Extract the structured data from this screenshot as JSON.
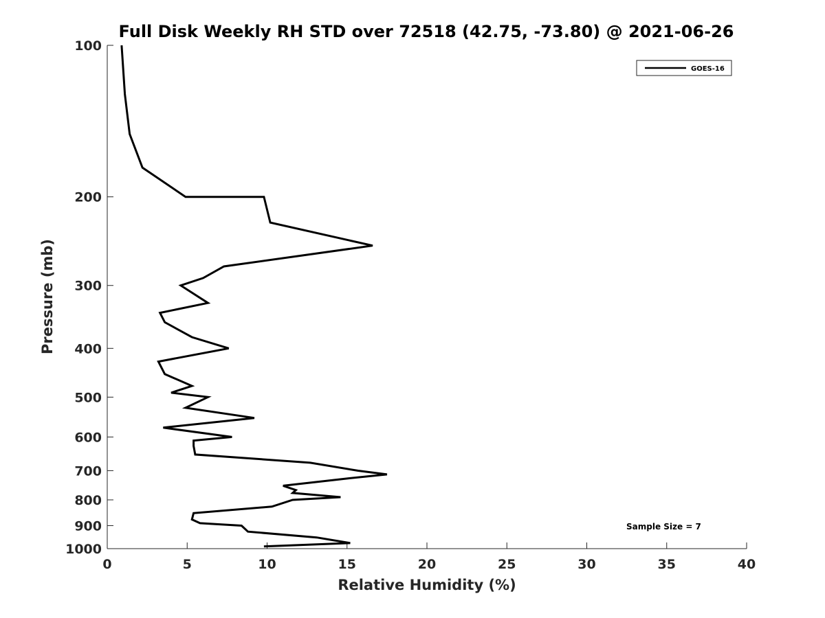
{
  "chart_data": {
    "type": "line",
    "title": "Full Disk Weekly RH STD over 72518 (42.75, -73.80) @ 2021-06-26",
    "xlabel": "Relative Humidity (%)",
    "ylabel": "Pressure (mb)",
    "xlim": [
      0,
      40
    ],
    "ylim": [
      100,
      1000
    ],
    "y_scale": "log-reversed",
    "xticks": [
      0,
      5,
      10,
      15,
      20,
      25,
      30,
      35,
      40
    ],
    "yticks": [
      100,
      200,
      300,
      400,
      500,
      600,
      700,
      800,
      900,
      1000
    ],
    "legend": {
      "placement": "top-right",
      "entries": [
        "GOES-16"
      ]
    },
    "annotation": "Sample Size = 7",
    "series": [
      {
        "name": "GOES-16",
        "color": "#000000",
        "points": [
          [
            0.9,
            100
          ],
          [
            1.1,
            125
          ],
          [
            1.4,
            150
          ],
          [
            2.2,
            175
          ],
          [
            4.9,
            200
          ],
          [
            9.8,
            200
          ],
          [
            10.2,
            225
          ],
          [
            16.6,
            250
          ],
          [
            7.3,
            275
          ],
          [
            6.0,
            290
          ],
          [
            4.6,
            300
          ],
          [
            6.3,
            325
          ],
          [
            3.3,
            340
          ],
          [
            3.6,
            355
          ],
          [
            5.3,
            380
          ],
          [
            7.6,
            400
          ],
          [
            3.2,
            425
          ],
          [
            3.6,
            450
          ],
          [
            5.3,
            475
          ],
          [
            4.0,
            490
          ],
          [
            6.3,
            500
          ],
          [
            4.9,
            525
          ],
          [
            9.2,
            550
          ],
          [
            3.5,
            575
          ],
          [
            7.8,
            600
          ],
          [
            5.4,
            610
          ],
          [
            5.4,
            625
          ],
          [
            5.5,
            650
          ],
          [
            12.7,
            675
          ],
          [
            15.7,
            700
          ],
          [
            17.5,
            712
          ],
          [
            15.1,
            725
          ],
          [
            11.0,
            750
          ],
          [
            11.8,
            765
          ],
          [
            11.6,
            775
          ],
          [
            14.6,
            790
          ],
          [
            11.6,
            800
          ],
          [
            10.3,
            825
          ],
          [
            5.4,
            850
          ],
          [
            5.3,
            875
          ],
          [
            5.8,
            890
          ],
          [
            8.4,
            900
          ],
          [
            8.8,
            925
          ],
          [
            13.1,
            950
          ],
          [
            15.2,
            975
          ],
          [
            9.8,
            990
          ]
        ]
      }
    ]
  }
}
